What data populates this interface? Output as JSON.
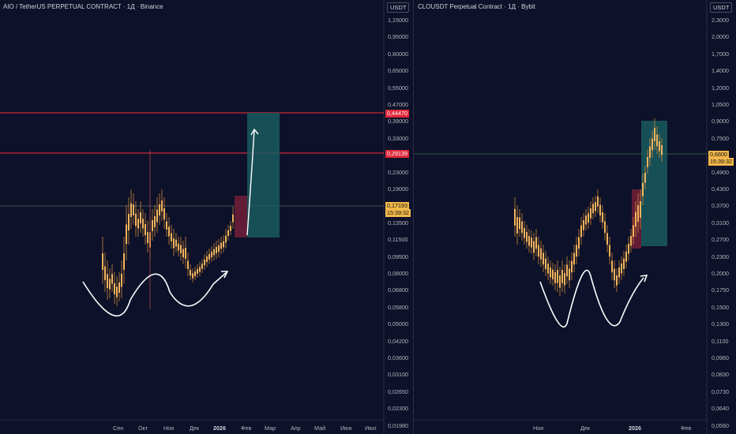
{
  "colors": {
    "background": "#0d1129",
    "candle": "#f5b45a",
    "candle_stroke": "#c98a3a",
    "resistance_line": "#ff2d3c",
    "resistance_tag": "#e0283a",
    "price_tag": "#f2b84a",
    "target_box": "#1a5a5e",
    "stop_box": "#6b1e36",
    "arrow": "#ffffff"
  },
  "left_chart": {
    "title": "AIO / TetherUS PERPETUAL CONTRACT · 1Д · Binance",
    "currency": "USDT",
    "y_ticks": [
      "1,15000",
      "0,95000",
      "0,80000",
      "0,65000",
      "0,55000",
      "0,47000",
      "0,39000",
      "0,33000",
      "0,27000",
      "0,23000",
      "0,19000",
      "0,16000",
      "0,13500",
      "0,11500",
      "0,09500",
      "0,08000",
      "0,06800",
      "0,05800",
      "0,05000",
      "0,04200",
      "0,03600",
      "0,03100",
      "0,02650",
      "0,02300",
      "0,01980"
    ],
    "x_ticks": [
      "Сен",
      "Окт",
      "Ноя",
      "Дек",
      "2026",
      "Фев",
      "Мар",
      "Апр",
      "Май",
      "Июн",
      "Июл"
    ],
    "resistance_levels": [
      "0,44470",
      "0,29139"
    ],
    "current_price": "0,17193",
    "countdown": "15:39:32"
  },
  "right_chart": {
    "title": "CLOUSDT Perpetual Contract · 1Д · Bybit",
    "currency": "USDT",
    "y_ticks": [
      "2,3000",
      "2,0000",
      "1,7000",
      "1,4000",
      "1,2000",
      "1,0500",
      "0,9000",
      "0,7500",
      "0,5700",
      "0,4900",
      "0,4300",
      "0,3700",
      "0,3100",
      "0,2700",
      "0,2300",
      "0,2000",
      "0,1750",
      "0,1500",
      "0,1300",
      "0,1100",
      "0,0960",
      "0,0830",
      "0,0730",
      "0,0640",
      "0,0560"
    ],
    "x_ticks": [
      "Ноя",
      "Дек",
      "2026",
      "Фев"
    ],
    "current_price": "0,6600",
    "countdown": "15:39:32"
  }
}
